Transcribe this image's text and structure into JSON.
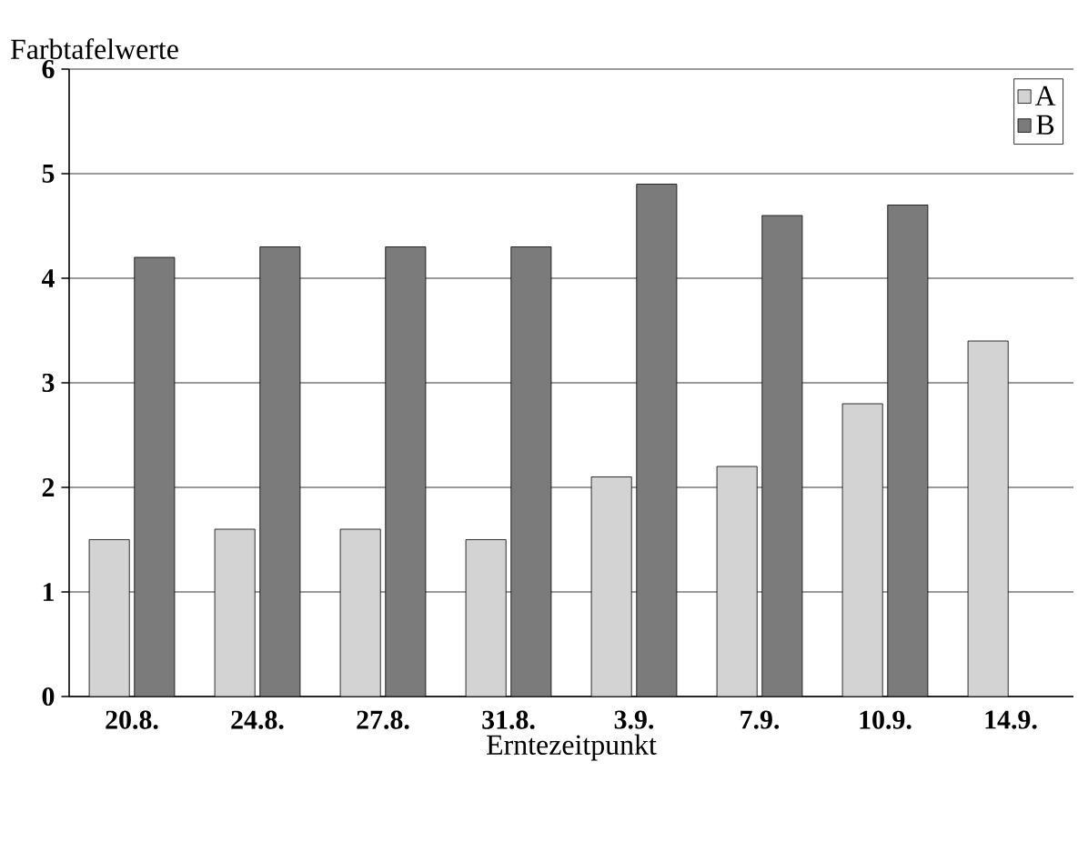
{
  "chart_data": {
    "type": "bar",
    "ylabel": "Farbtafelwerte",
    "xlabel": "Erntezeitpunkt",
    "categories": [
      "20.8.",
      "24.8.",
      "27.8.",
      "31.8.",
      "3.9.",
      "7.9.",
      "10.9.",
      "14.9."
    ],
    "series": [
      {
        "name": "A",
        "color": "#d3d3d3",
        "values": [
          1.5,
          1.6,
          1.6,
          1.5,
          2.1,
          2.2,
          2.8,
          3.4
        ]
      },
      {
        "name": "B",
        "color": "#7b7b7b",
        "values": [
          4.2,
          4.3,
          4.3,
          4.3,
          4.9,
          4.6,
          4.7,
          null
        ]
      }
    ],
    "ylim": [
      0,
      6
    ],
    "yticks": [
      0,
      1,
      2,
      3,
      4,
      5,
      6
    ],
    "grid": "y",
    "legend": "top right"
  }
}
